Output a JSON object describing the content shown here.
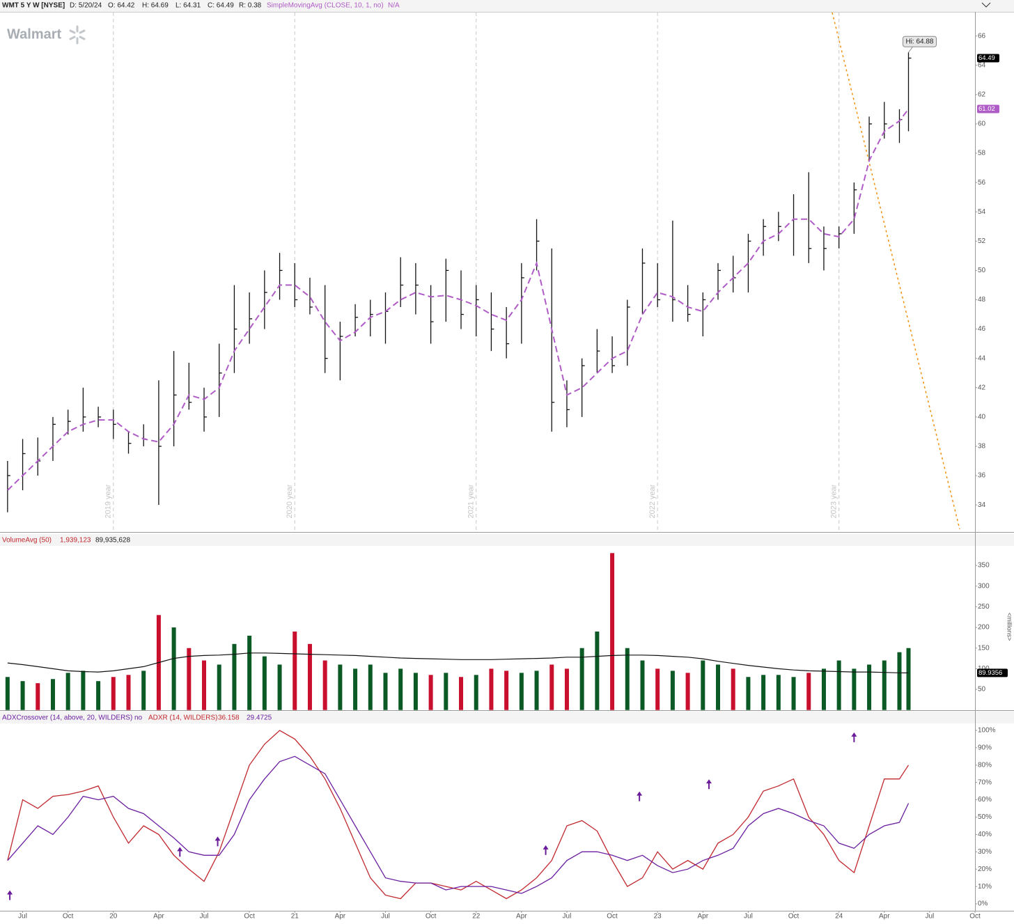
{
  "header": {
    "symbol": "WMT 5 Y W [NYSE]",
    "date": "D: 5/20/24",
    "open": "O: 64.42",
    "high": "H: 64.69",
    "low": "L: 64.31",
    "close": "C: 64.49",
    "range": "R: 0.38",
    "status": "N/A"
  },
  "logo": "Walmart",
  "chart_data": [
    {
      "type": "ohlc",
      "x": [
        5,
        6,
        7,
        8,
        9,
        10,
        11,
        12,
        13,
        14,
        15,
        16,
        17,
        18,
        19,
        20,
        21,
        22,
        23,
        24,
        25,
        26,
        27,
        28,
        29,
        30,
        31,
        32,
        33,
        34,
        35,
        36,
        37,
        38,
        39,
        40,
        41,
        42,
        43,
        44,
        45,
        46,
        47,
        48,
        49,
        50,
        51,
        52,
        53,
        54,
        55,
        56,
        57,
        58,
        59,
        60,
        61,
        62,
        63,
        64,
        64.6
      ],
      "high": [
        37,
        38.5,
        38.6,
        40,
        40.5,
        42,
        40.7,
        40.5,
        39,
        39.5,
        42.5,
        44.5,
        43.7,
        42,
        45,
        49,
        48.5,
        50,
        51.2,
        50.5,
        49.5,
        49,
        46.5,
        47.7,
        48,
        48.5,
        50.9,
        50.5,
        49,
        50.8,
        50,
        49,
        48.5,
        47.5,
        50.5,
        53.5,
        51.5,
        42.5,
        44,
        46,
        45.5,
        48,
        51.5,
        50.5,
        53.4,
        49,
        48.5,
        50.5,
        51,
        52.5,
        53.5,
        54,
        55.2,
        56.7,
        53,
        53,
        56,
        60.5,
        61.5,
        61,
        64.88
      ],
      "low": [
        33.5,
        35,
        36,
        37,
        38.8,
        39,
        39.3,
        38.5,
        37.5,
        38,
        34,
        38,
        40.5,
        39,
        40,
        43,
        45,
        46,
        48,
        47.5,
        47,
        43,
        42.5,
        45.5,
        45.5,
        45,
        47.5,
        47,
        45,
        46.5,
        46,
        45.5,
        44.5,
        44,
        45,
        50,
        39,
        39.3,
        40,
        43,
        43,
        43.5,
        47,
        47.5,
        46.5,
        46.5,
        45.5,
        48,
        48.5,
        48.5,
        51,
        52,
        51,
        50.5,
        50,
        51.5,
        52.5,
        57.5,
        59,
        58.7,
        59.5
      ],
      "close": [
        36,
        37.5,
        37,
        39.5,
        39.7,
        40,
        40,
        39.5,
        38.2,
        38.5,
        38,
        41.5,
        41,
        40,
        43,
        46,
        46.7,
        48.5,
        50,
        48,
        47.5,
        44,
        45.5,
        46.8,
        47,
        47.2,
        49,
        49,
        46.5,
        50,
        47,
        48,
        46,
        45,
        49.5,
        52,
        41,
        40.5,
        43.5,
        44.5,
        43.5,
        47.5,
        50.5,
        48,
        48,
        47,
        48,
        50,
        49.5,
        52,
        53,
        53,
        53.5,
        51.5,
        51.5,
        52.5,
        55.5,
        60,
        60,
        60.3,
        64.49
      ],
      "color": "#111111",
      "series": [
        {
          "name": "SimpleMovingAvg (CLOSE, 10, 1, no)",
          "color": "#b05cc6",
          "values": [
            35,
            36,
            37,
            38,
            39,
            39.5,
            39.8,
            39.8,
            39,
            38.5,
            38.3,
            39.5,
            41.5,
            41.2,
            42,
            44.5,
            46,
            47.5,
            49,
            49,
            48.2,
            46.5,
            45.2,
            45.8,
            46.8,
            47.2,
            48,
            48.5,
            48.2,
            48.3,
            48,
            47.6,
            47,
            46.6,
            48,
            50.5,
            46,
            41.5,
            42,
            43,
            44,
            44.5,
            47,
            48.5,
            48.2,
            47.5,
            47.2,
            48.5,
            49.5,
            50.5,
            52,
            52.5,
            53.5,
            53.5,
            52.5,
            52.3,
            53.5,
            57.5,
            59.5,
            60.2,
            61.02
          ]
        }
      ],
      "hi_label": "Hi: 64.88",
      "xlim": [
        4.5,
        69
      ],
      "ylim": [
        32.2,
        67.6
      ],
      "yticks": [
        34,
        36,
        38,
        40,
        42,
        44,
        46,
        48,
        50,
        52,
        54,
        56,
        58,
        60,
        62,
        64,
        66
      ],
      "year_lines": [
        {
          "value": 12,
          "label": "2019 year"
        },
        {
          "value": 24,
          "label": "2020 year"
        },
        {
          "value": 36,
          "label": "2021 year"
        },
        {
          "value": 48,
          "label": "2022 year"
        },
        {
          "value": 60,
          "label": "2023 year"
        }
      ]
    },
    {
      "type": "volume",
      "values": [
        80,
        70,
        65,
        75,
        90,
        95,
        70,
        80,
        85,
        95,
        230,
        200,
        150,
        120,
        110,
        160,
        180,
        130,
        110,
        190,
        160,
        120,
        110,
        100,
        110,
        90,
        100,
        90,
        85,
        90,
        80,
        85,
        100,
        95,
        90,
        95,
        110,
        100,
        150,
        190,
        380,
        150,
        120,
        100,
        95,
        90,
        120,
        110,
        100,
        80,
        85,
        85,
        80,
        90,
        100,
        120,
        100,
        110,
        120,
        140,
        150
      ],
      "up_color": "#0b5a26",
      "down_color": "#c8102e",
      "series": [
        {
          "name": "VolumeAvg (50)",
          "color": "#111111",
          "values": [
            114,
            110,
            105,
            100,
            95,
            93,
            92,
            95,
            100,
            105,
            115,
            125,
            130,
            132,
            133,
            135,
            138,
            138,
            137,
            136,
            135,
            134,
            133,
            132,
            130,
            128,
            126,
            125,
            124,
            123,
            122,
            122,
            122,
            123,
            124,
            125,
            126,
            128,
            128,
            130,
            132,
            133,
            133,
            132,
            130,
            128,
            124,
            118,
            113,
            108,
            104,
            100,
            97,
            95,
            94,
            93,
            92,
            92,
            91,
            90,
            89.9356
          ]
        }
      ],
      "legend_values": [
        "1,939,123",
        "89,935,628"
      ],
      "y_label": "<millions>",
      "xlim": [
        4.5,
        69
      ],
      "ylim": [
        0,
        394
      ],
      "yticks": [
        50,
        100,
        150,
        200,
        250,
        300,
        350
      ]
    },
    {
      "type": "line",
      "studies": [
        "ADXCrossover (14, above, 20, WILDERS)",
        "no",
        "ADXR (14, WILDERS)",
        36.158,
        29.4725
      ],
      "series": [
        {
          "color": "#c0272d",
          "values": [
            25,
            60,
            55,
            62,
            63,
            65,
            68,
            50,
            35,
            45,
            40,
            28,
            20,
            13,
            30,
            55,
            80,
            92,
            100,
            95,
            85,
            72,
            55,
            35,
            15,
            5,
            3,
            12,
            12,
            10,
            8,
            13,
            8,
            3,
            8,
            15,
            25,
            45,
            48,
            42,
            25,
            10,
            15,
            30,
            20,
            25,
            20,
            35,
            40,
            50,
            65,
            68,
            72,
            50,
            40,
            25,
            18,
            45,
            72,
            72,
            80
          ]
        },
        {
          "color": "#6a1fa0",
          "values": [
            25,
            35,
            45,
            40,
            50,
            62,
            60,
            62,
            55,
            52,
            45,
            38,
            30,
            28,
            28,
            40,
            60,
            72,
            82,
            85,
            80,
            75,
            60,
            45,
            30,
            15,
            13,
            12,
            12,
            8,
            10,
            10,
            10,
            8,
            6,
            10,
            15,
            25,
            30,
            30,
            28,
            25,
            28,
            22,
            18,
            20,
            25,
            28,
            32,
            45,
            52,
            55,
            52,
            48,
            45,
            35,
            32,
            40,
            45,
            47,
            58
          ]
        }
      ],
      "signals": {
        "color": "#6a1b9a",
        "x": [
          5.15,
          16.4,
          18.9,
          40.6,
          46.8,
          51.4,
          61
        ],
        "values": [
          5,
          30,
          36,
          31,
          62,
          69,
          96
        ]
      },
      "xlim": [
        4.5,
        69
      ],
      "xticks": [
        {
          "value": 6,
          "label": "Jul"
        },
        {
          "value": 9,
          "label": "Oct"
        },
        {
          "value": 12,
          "label": "20"
        },
        {
          "value": 15,
          "label": "Apr"
        },
        {
          "value": 18,
          "label": "Jul"
        },
        {
          "value": 21,
          "label": "Oct"
        },
        {
          "value": 24,
          "label": "21"
        },
        {
          "value": 27,
          "label": "Apr"
        },
        {
          "value": 30,
          "label": "Jul"
        },
        {
          "value": 33,
          "label": "Oct"
        },
        {
          "value": 36,
          "label": "22"
        },
        {
          "value": 39,
          "label": "Apr"
        },
        {
          "value": 42,
          "label": "Jul"
        },
        {
          "value": 45,
          "label": "Oct"
        },
        {
          "value": 48,
          "label": "23"
        },
        {
          "value": 51,
          "label": "Apr"
        },
        {
          "value": 54,
          "label": "Jul"
        },
        {
          "value": 57,
          "label": "Oct"
        },
        {
          "value": 60,
          "label": "24"
        },
        {
          "value": 63,
          "label": "Apr"
        },
        {
          "value": 66,
          "label": "Jul"
        },
        {
          "value": 69,
          "label": "Oct"
        }
      ],
      "ylim": [
        -4,
        103.6
      ],
      "yticks": [
        {
          "value": 0,
          "label": "0%"
        },
        {
          "value": 10,
          "label": "10%"
        },
        {
          "value": 20,
          "label": "20%"
        },
        {
          "value": 30,
          "label": "30%"
        },
        {
          "value": 40,
          "label": "40%"
        },
        {
          "value": 50,
          "label": "50%"
        },
        {
          "value": 60,
          "label": "60%"
        },
        {
          "value": 70,
          "label": "70%"
        },
        {
          "value": 80,
          "label": "80%"
        },
        {
          "value": 90,
          "label": "90%"
        },
        {
          "value": 100,
          "label": "100%"
        }
      ]
    }
  ]
}
